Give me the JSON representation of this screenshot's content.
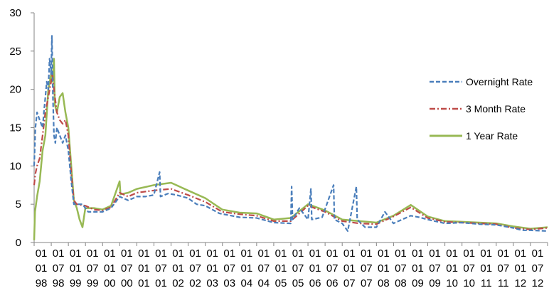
{
  "chart_data": {
    "type": "line",
    "title": "",
    "xlabel": "",
    "ylabel": "",
    "ylim": [
      0,
      30
    ],
    "yticks": [
      "0",
      "5",
      "10",
      "15",
      "20",
      "25",
      "30"
    ],
    "grid": false,
    "legend_position": "right",
    "x_tick_labels": [
      [
        "01",
        "01",
        "98"
      ],
      [
        "01",
        "07",
        "98"
      ],
      [
        "01",
        "01",
        "99"
      ],
      [
        "01",
        "07",
        "99"
      ],
      [
        "01",
        "01",
        "00"
      ],
      [
        "01",
        "07",
        "00"
      ],
      [
        "01",
        "01",
        "01"
      ],
      [
        "01",
        "07",
        "01"
      ],
      [
        "01",
        "01",
        "02"
      ],
      [
        "01",
        "07",
        "02"
      ],
      [
        "01",
        "01",
        "03"
      ],
      [
        "01",
        "07",
        "03"
      ],
      [
        "01",
        "01",
        "04"
      ],
      [
        "01",
        "07",
        "04"
      ],
      [
        "01",
        "01",
        "05"
      ],
      [
        "01",
        "07",
        "05"
      ],
      [
        "01",
        "01",
        "06"
      ],
      [
        "01",
        "07",
        "06"
      ],
      [
        "01",
        "01",
        "07"
      ],
      [
        "01",
        "07",
        "07"
      ],
      [
        "01",
        "01",
        "08"
      ],
      [
        "01",
        "07",
        "08"
      ],
      [
        "01",
        "01",
        "09"
      ],
      [
        "01",
        "07",
        "09"
      ],
      [
        "01",
        "01",
        "10"
      ],
      [
        "01",
        "07",
        "10"
      ],
      [
        "01",
        "01",
        "11"
      ],
      [
        "01",
        "07",
        "11"
      ],
      [
        "01",
        "01",
        "12"
      ],
      [
        "01",
        "07",
        "12"
      ]
    ],
    "x_range": [
      "1998-01-01",
      "2012-12-31"
    ],
    "series": [
      {
        "name": "Overnight Rate",
        "color": "#4a7ebb",
        "style": "dashed",
        "points": [
          [
            "1998-01-01",
            10
          ],
          [
            "1998-01-15",
            15
          ],
          [
            "1998-02-01",
            17
          ],
          [
            "1998-03-01",
            16
          ],
          [
            "1998-04-01",
            15
          ],
          [
            "1998-04-15",
            17
          ],
          [
            "1998-05-01",
            19
          ],
          [
            "1998-05-15",
            21
          ],
          [
            "1998-06-01",
            20
          ],
          [
            "1998-06-15",
            24
          ],
          [
            "1998-07-01",
            22
          ],
          [
            "1998-07-10",
            27
          ],
          [
            "1998-07-20",
            19
          ],
          [
            "1998-08-01",
            14
          ],
          [
            "1998-08-15",
            13
          ],
          [
            "1998-09-01",
            15
          ],
          [
            "1998-10-01",
            14
          ],
          [
            "1998-11-01",
            13
          ],
          [
            "1998-12-01",
            14
          ],
          [
            "1999-01-01",
            12
          ],
          [
            "1999-02-01",
            8
          ],
          [
            "1999-03-01",
            5
          ],
          [
            "1999-04-01",
            5
          ],
          [
            "1999-06-01",
            5
          ],
          [
            "1999-08-01",
            4
          ],
          [
            "1999-10-01",
            4
          ],
          [
            "2000-01-01",
            4
          ],
          [
            "2000-04-01",
            4.5
          ],
          [
            "2000-07-01",
            6
          ],
          [
            "2000-10-01",
            5.5
          ],
          [
            "2001-01-01",
            6
          ],
          [
            "2001-04-01",
            6
          ],
          [
            "2001-07-01",
            6.2
          ],
          [
            "2001-09-01",
            9.2
          ],
          [
            "2001-09-10",
            6
          ],
          [
            "2001-12-01",
            6.4
          ],
          [
            "2002-03-01",
            6.2
          ],
          [
            "2002-07-01",
            5.8
          ],
          [
            "2002-10-01",
            5
          ],
          [
            "2003-01-01",
            4.8
          ],
          [
            "2003-06-01",
            3.8
          ],
          [
            "2004-01-01",
            3.3
          ],
          [
            "2004-07-01",
            3.2
          ],
          [
            "2005-01-01",
            2.6
          ],
          [
            "2005-07-01",
            2.5
          ],
          [
            "2005-07-10",
            7.3
          ],
          [
            "2005-07-20",
            3
          ],
          [
            "2005-10-01",
            4.5
          ],
          [
            "2006-01-01",
            3
          ],
          [
            "2006-02-01",
            7
          ],
          [
            "2006-02-10",
            3
          ],
          [
            "2006-06-01",
            3.3
          ],
          [
            "2006-10-01",
            7.5
          ],
          [
            "2006-10-10",
            3
          ],
          [
            "2007-01-01",
            2.5
          ],
          [
            "2007-03-01",
            1.5
          ],
          [
            "2007-06-01",
            7.3
          ],
          [
            "2007-06-10",
            3
          ],
          [
            "2007-09-01",
            2
          ],
          [
            "2008-01-01",
            2
          ],
          [
            "2008-04-01",
            4
          ],
          [
            "2008-07-01",
            2.5
          ],
          [
            "2008-10-01",
            3
          ],
          [
            "2009-01-01",
            3.5
          ],
          [
            "2009-04-01",
            3.3
          ],
          [
            "2009-07-01",
            3
          ],
          [
            "2010-01-01",
            2.5
          ],
          [
            "2010-07-01",
            2.6
          ],
          [
            "2011-01-01",
            2.4
          ],
          [
            "2011-07-01",
            2.3
          ],
          [
            "2012-01-01",
            1.9
          ],
          [
            "2012-04-01",
            1.6
          ],
          [
            "2012-07-01",
            1.6
          ],
          [
            "2012-12-31",
            1.5
          ]
        ]
      },
      {
        "name": "3 Month Rate",
        "color": "#be4b48",
        "style": "dash-dot",
        "points": [
          [
            "1998-01-01",
            7.5
          ],
          [
            "1998-01-15",
            9
          ],
          [
            "1998-02-01",
            10
          ],
          [
            "1998-03-01",
            11
          ],
          [
            "1998-04-01",
            14
          ],
          [
            "1998-05-01",
            17
          ],
          [
            "1998-06-01",
            19
          ],
          [
            "1998-07-01",
            21
          ],
          [
            "1998-07-15",
            22
          ],
          [
            "1998-08-01",
            20
          ],
          [
            "1998-09-01",
            17
          ],
          [
            "1998-10-01",
            16
          ],
          [
            "1998-11-01",
            15.5
          ],
          [
            "1998-12-01",
            16
          ],
          [
            "1999-01-01",
            14
          ],
          [
            "1999-02-01",
            9
          ],
          [
            "1999-03-01",
            5.5
          ],
          [
            "1999-04-01",
            5
          ],
          [
            "1999-07-01",
            4.8
          ],
          [
            "1999-10-01",
            4.3
          ],
          [
            "2000-01-01",
            4.2
          ],
          [
            "2000-04-01",
            4.6
          ],
          [
            "2000-07-01",
            6.5
          ],
          [
            "2000-10-01",
            6
          ],
          [
            "2001-01-01",
            6.5
          ],
          [
            "2001-07-01",
            6.8
          ],
          [
            "2002-01-01",
            7
          ],
          [
            "2002-07-01",
            6.2
          ],
          [
            "2003-01-01",
            5.3
          ],
          [
            "2003-07-01",
            4
          ],
          [
            "2004-01-01",
            3.7
          ],
          [
            "2004-07-01",
            3.5
          ],
          [
            "2005-01-01",
            2.8
          ],
          [
            "2005-07-01",
            2.8
          ],
          [
            "2006-01-01",
            4.8
          ],
          [
            "2006-07-01",
            4
          ],
          [
            "2007-01-01",
            2.8
          ],
          [
            "2007-07-01",
            2.5
          ],
          [
            "2008-01-01",
            2.4
          ],
          [
            "2008-07-01",
            3.4
          ],
          [
            "2009-01-01",
            4.6
          ],
          [
            "2009-07-01",
            3.2
          ],
          [
            "2010-01-01",
            2.7
          ],
          [
            "2010-07-01",
            2.6
          ],
          [
            "2011-01-01",
            2.5
          ],
          [
            "2011-07-01",
            2.4
          ],
          [
            "2012-01-01",
            1.9
          ],
          [
            "2012-07-01",
            1.7
          ],
          [
            "2012-12-31",
            1.9
          ]
        ]
      },
      {
        "name": "1 Year Rate",
        "color": "#98b954",
        "style": "solid",
        "points": [
          [
            "1998-01-01",
            0.3
          ],
          [
            "1998-01-10",
            4
          ],
          [
            "1998-02-01",
            6
          ],
          [
            "1998-03-01",
            8
          ],
          [
            "1998-04-01",
            12
          ],
          [
            "1998-05-01",
            14
          ],
          [
            "1998-06-01",
            20
          ],
          [
            "1998-07-01",
            22
          ],
          [
            "1998-07-15",
            21
          ],
          [
            "1998-08-01",
            24
          ],
          [
            "1998-08-10",
            18
          ],
          [
            "1998-09-01",
            17
          ],
          [
            "1998-10-01",
            19
          ],
          [
            "1998-11-01",
            19.5
          ],
          [
            "1998-12-01",
            17
          ],
          [
            "1999-01-01",
            15
          ],
          [
            "1999-02-01",
            10
          ],
          [
            "1999-03-01",
            5.5
          ],
          [
            "1999-04-01",
            4.5
          ],
          [
            "1999-05-01",
            3
          ],
          [
            "1999-06-01",
            2
          ],
          [
            "1999-07-01",
            4.5
          ],
          [
            "1999-10-01",
            4.5
          ],
          [
            "2000-01-01",
            4.3
          ],
          [
            "2000-04-01",
            4.8
          ],
          [
            "2000-07-01",
            8
          ],
          [
            "2000-07-10",
            6.3
          ],
          [
            "2000-10-01",
            6.5
          ],
          [
            "2001-01-01",
            7
          ],
          [
            "2001-07-01",
            7.5
          ],
          [
            "2002-01-01",
            7.8
          ],
          [
            "2002-07-01",
            6.8
          ],
          [
            "2003-01-01",
            5.8
          ],
          [
            "2003-07-01",
            4.3
          ],
          [
            "2004-01-01",
            3.9
          ],
          [
            "2004-07-01",
            3.8
          ],
          [
            "2005-01-01",
            3
          ],
          [
            "2005-07-01",
            3.2
          ],
          [
            "2006-01-01",
            5
          ],
          [
            "2006-07-01",
            4.2
          ],
          [
            "2007-01-01",
            3
          ],
          [
            "2007-07-01",
            2.8
          ],
          [
            "2008-01-01",
            2.6
          ],
          [
            "2008-07-01",
            3.5
          ],
          [
            "2009-01-01",
            4.9
          ],
          [
            "2009-07-01",
            3.4
          ],
          [
            "2010-01-01",
            2.8
          ],
          [
            "2010-07-01",
            2.7
          ],
          [
            "2011-01-01",
            2.6
          ],
          [
            "2011-07-01",
            2.5
          ],
          [
            "2012-01-01",
            2.1
          ],
          [
            "2012-07-01",
            1.8
          ],
          [
            "2012-12-31",
            2
          ]
        ]
      }
    ]
  }
}
